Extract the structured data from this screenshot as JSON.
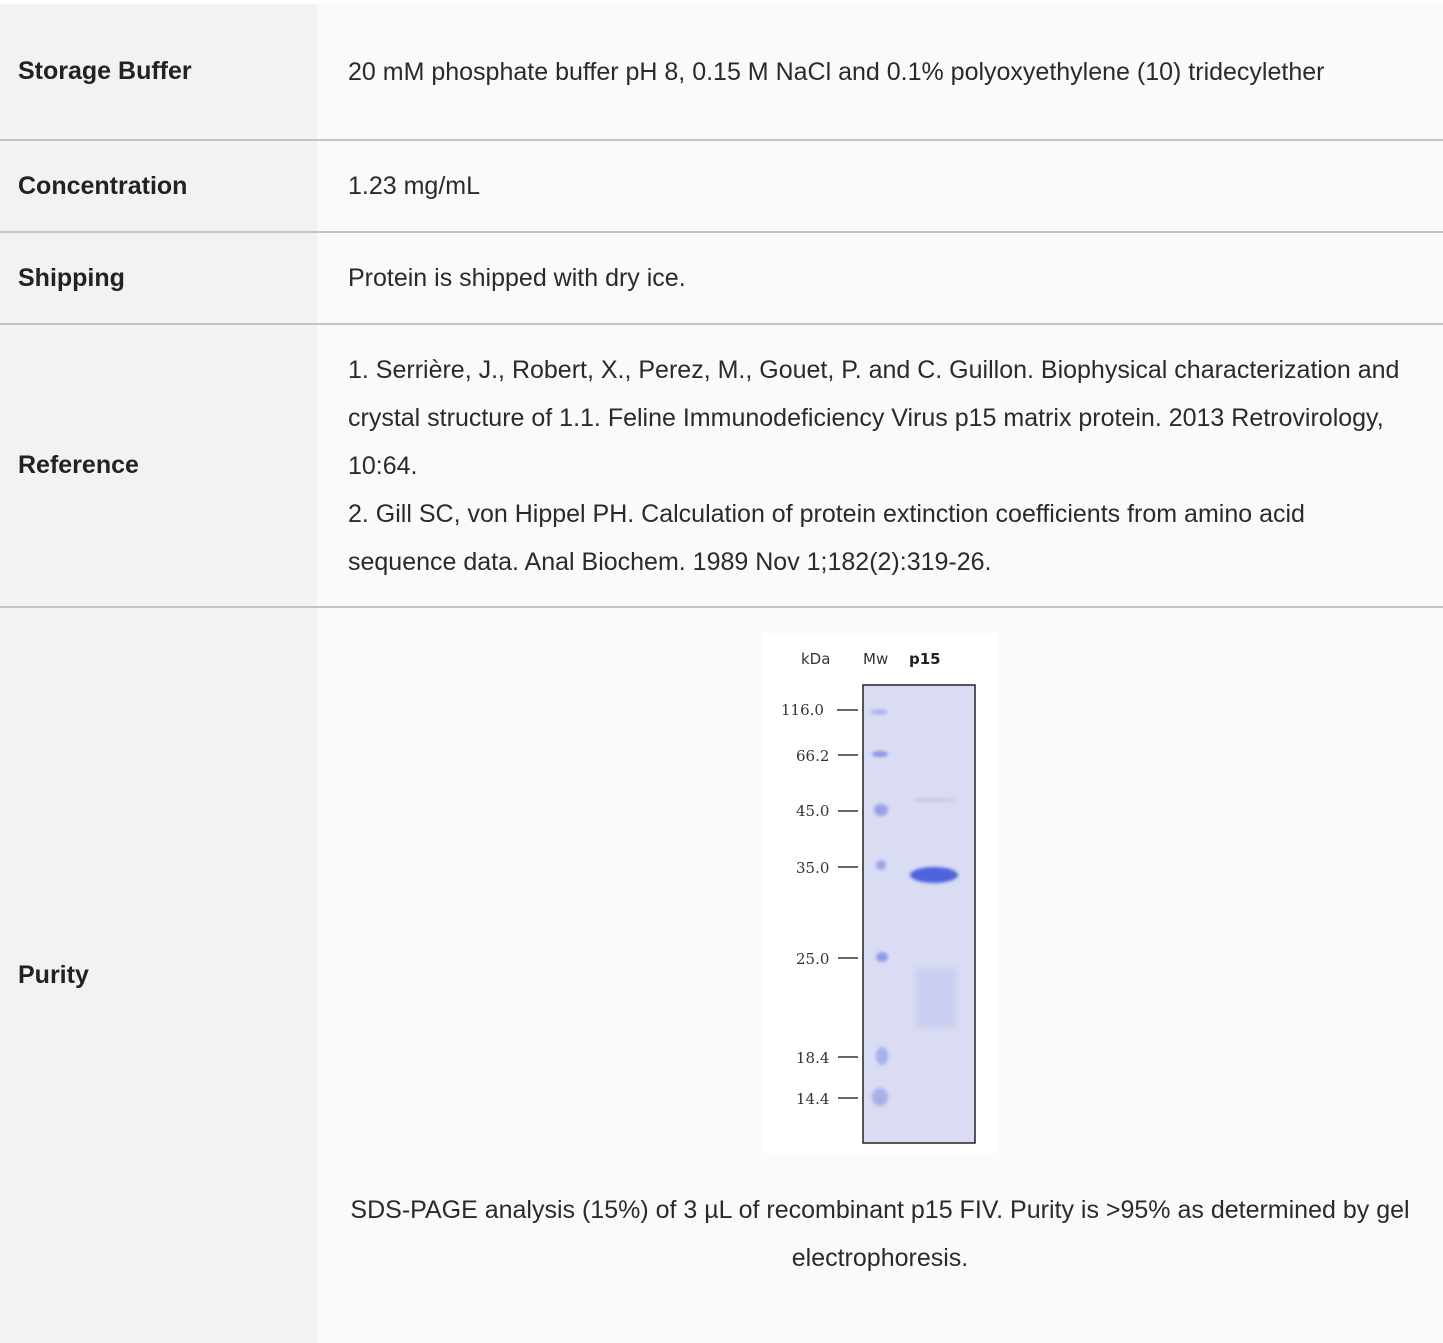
{
  "rows": [
    {
      "label": "Storage Buffer",
      "value": "20 mM phosphate buffer pH 8, 0.15 M NaCl and 0.1% polyoxyethylene (10) tridecylether"
    },
    {
      "label": "Concentration",
      "value": "1.23 mg/mL"
    },
    {
      "label": "Shipping",
      "value": "Protein is shipped with dry ice."
    },
    {
      "label": "Reference",
      "lines": [
        "1. Serrière, J., Robert, X., Perez, M., Gouet, P. and C. Guillon. Biophysical characterization and crystal structure of 1.1. Feline Immunodeficiency Virus p15 matrix protein. 2013 Retrovirology, 10:64.",
        "2. Gill SC, von Hippel PH. Calculation of protein extinction coefficients from amino acid sequence data. Anal Biochem. 1989 Nov 1;182(2):319-26."
      ]
    },
    {
      "label": "Purity",
      "caption": "SDS-PAGE analysis (15%) of 3 µL of recombinant p15 FIV. Purity is >95% as determined by gel electrophoresis."
    }
  ],
  "gel": {
    "unit_label": "kDa",
    "lane_labels": [
      "Mw",
      "p15"
    ],
    "markers": [
      "116.0",
      "66.2",
      "45.0",
      "35.0",
      "25.0",
      "18.4",
      "14.4"
    ],
    "colors": {
      "gel_background": "#d9dcf2",
      "band": "#5a6ee0",
      "marker_band": "#7d8ce6"
    }
  }
}
